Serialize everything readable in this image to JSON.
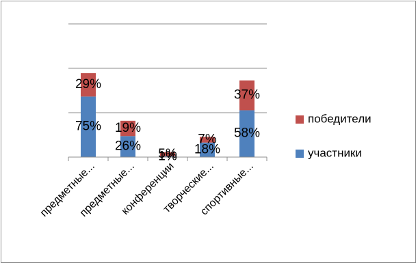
{
  "chart_data": {
    "type": "bar",
    "stacked": true,
    "percent_labels": true,
    "categories": [
      "предметные...",
      "предметные...",
      "конференции",
      "творческие...",
      "спортивные..."
    ],
    "series": [
      {
        "name": "участники",
        "values": [
          75,
          26,
          1,
          18,
          58
        ],
        "color": "#4f81bd"
      },
      {
        "name": "победители",
        "values": [
          29,
          19,
          5,
          7,
          37
        ],
        "color": "#c0504d"
      }
    ],
    "ylim": [
      0,
      165
    ],
    "gridlines": [
      55,
      110,
      165
    ],
    "grid": true,
    "legend_position": "right",
    "title": "",
    "xlabel": "",
    "ylabel": ""
  }
}
